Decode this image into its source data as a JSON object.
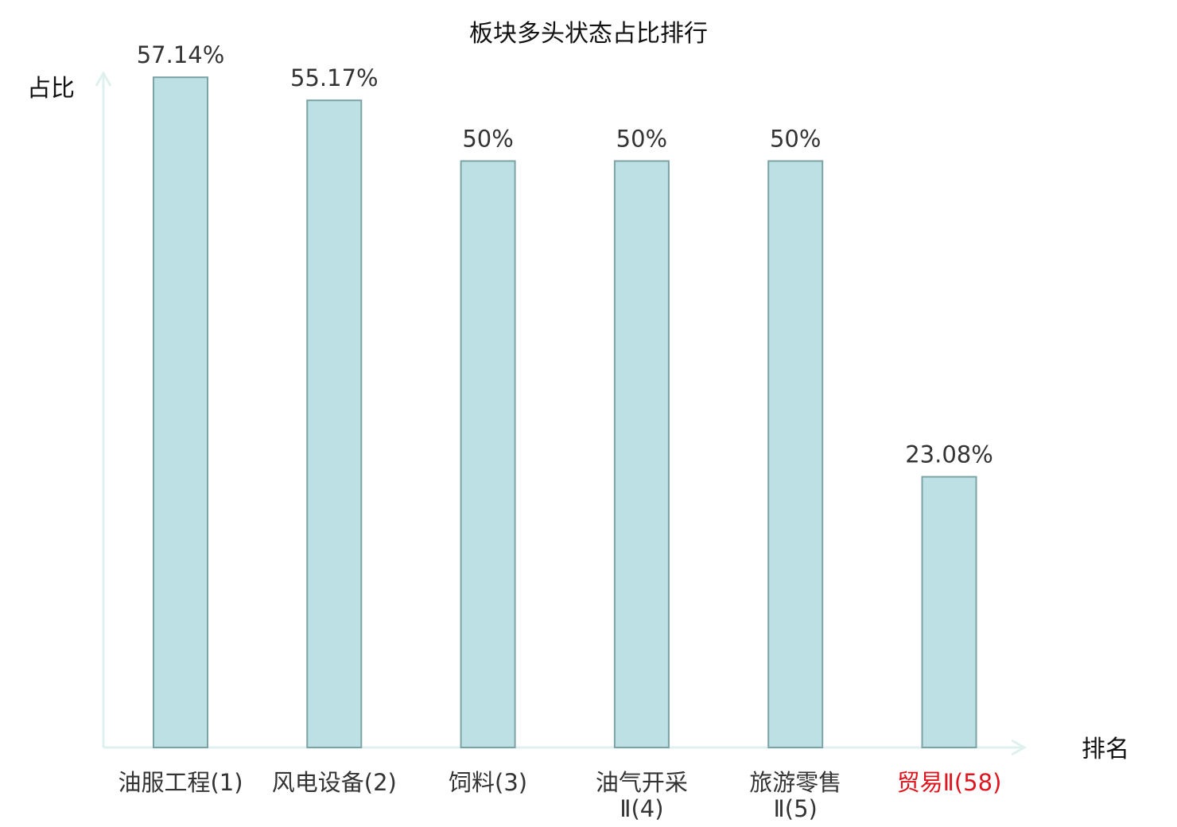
{
  "chart_data": {
    "type": "bar",
    "title": "板块多头状态占比排行",
    "ylabel": "占比",
    "xlabel": "排名",
    "ylim": [
      0,
      60
    ],
    "grid": false,
    "categories": [
      [
        "油服工程(1)"
      ],
      [
        "风电设备(2)"
      ],
      [
        "饲料(3)"
      ],
      [
        "油气开采",
        "Ⅱ(4)"
      ],
      [
        "旅游零售",
        "Ⅱ(5)"
      ],
      [
        "贸易Ⅱ(58)"
      ]
    ],
    "values": [
      57.14,
      55.17,
      50,
      50,
      50,
      23.08
    ],
    "value_labels": [
      "57.14%",
      "55.17%",
      "50%",
      "50%",
      "50%",
      "23.08%"
    ],
    "highlight_index": 5,
    "colors": {
      "bar_fill": "#bce0e3",
      "bar_stroke": "#7ba3a6",
      "axis": "#dff1ee",
      "text": "#333333",
      "highlight_text": "#e0141e"
    }
  }
}
